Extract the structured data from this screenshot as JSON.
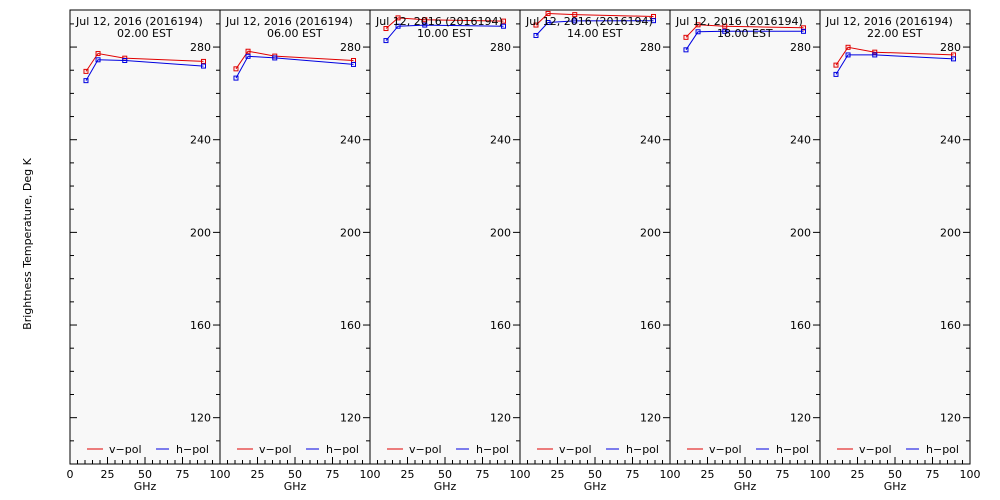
{
  "figure": {
    "ylabel": "Brightness Temperature, Deg K",
    "xlabel": "GHz"
  },
  "chart_data": {
    "type": "line",
    "ylim": [
      100,
      296
    ],
    "y_ticks": [
      120,
      160,
      200,
      240,
      280
    ],
    "x_ticks": [
      "0",
      "25",
      "50",
      "75",
      "100"
    ],
    "x_tick_values": [
      0,
      25,
      50,
      75,
      100
    ],
    "xlim": [
      0,
      100
    ],
    "x": [
      10.65,
      18.7,
      36.5,
      89.0
    ],
    "legend": {
      "placement": "bottom",
      "v_label": "v−pol",
      "h_label": "h−pol"
    },
    "colors": {
      "v": "#e00000",
      "h": "#0000e0",
      "panel_bg": "#f8f8f8"
    },
    "panels": [
      {
        "date": "Jul 12, 2016 (2016194)",
        "time": "02.00 EST",
        "v": [
          269.5,
          277.2,
          275.2,
          273.8
        ],
        "h": [
          265.5,
          274.5,
          274.2,
          271.8
        ]
      },
      {
        "date": "Jul 12, 2016 (2016194)",
        "time": "06.00 EST",
        "v": [
          270.6,
          278.2,
          276.1,
          274.2
        ],
        "h": [
          266.6,
          276.0,
          275.3,
          272.5
        ]
      },
      {
        "date": "Jul 12, 2016 (2016194)",
        "time": "10.00 EST",
        "v": [
          288.0,
          292.6,
          291.8,
          291.2
        ],
        "h": [
          282.8,
          289.0,
          289.5,
          289.0
        ]
      },
      {
        "date": "Jul 12, 2016 (2016194)",
        "time": "14.00 EST",
        "v": [
          289.5,
          294.5,
          294.0,
          293.2
        ],
        "h": [
          285.0,
          290.6,
          291.3,
          291.4
        ]
      },
      {
        "date": "Jul 12, 2016 (2016194)",
        "time": "18.00 EST",
        "v": [
          284.2,
          289.6,
          289.0,
          288.3
        ],
        "h": [
          278.8,
          286.6,
          286.8,
          286.8
        ]
      },
      {
        "date": "Jul 12, 2016 (2016194)",
        "time": "22.00 EST",
        "v": [
          272.2,
          279.9,
          277.8,
          276.6
        ],
        "h": [
          268.2,
          276.6,
          276.6,
          274.9
        ]
      }
    ]
  }
}
